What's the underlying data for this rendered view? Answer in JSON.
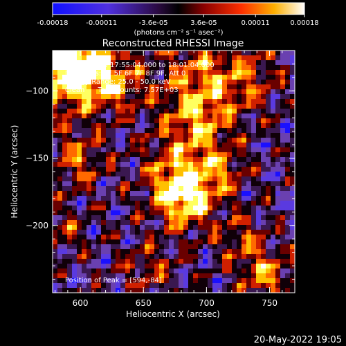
{
  "colorbar": {
    "tick_labels": [
      "-0.00018",
      "-0.00011",
      "-3.6e-05",
      "3.6e-05",
      "0.00011",
      "0.00018"
    ],
    "tick_values": [
      -0.00018,
      -0.00011,
      -3.6e-05,
      3.6e-05,
      0.00011,
      0.00018
    ],
    "range": [
      -0.00018,
      0.00018
    ],
    "unit_label": "(photons cm⁻² s⁻¹ asec⁻²)"
  },
  "chart_data": {
    "type": "heatmap",
    "title": "Reconstructed RHESSI Image",
    "xlabel": "Heliocentric X (arcsec)",
    "ylabel": "Heliocentric Y (arcsec)",
    "xlim": [
      578,
      770
    ],
    "ylim": [
      -250,
      -70
    ],
    "xticks": [
      600,
      650,
      700,
      750
    ],
    "xtick_labels": [
      "600",
      "650",
      "700",
      "750"
    ],
    "yticks": [
      -100,
      -150,
      -200
    ],
    "ytick_labels": [
      "−100",
      "−150",
      "−200"
    ],
    "annotations": [
      "26-Apr-2015 17:55:04.000 to 18:01:04.000",
      "Detectors: 3F 5F 6F 7F 8F 9F, Att 0",
      "Energy Range: 25.0 - 50.0 keV",
      "Clean      Total counts: 7.57E+03"
    ],
    "peak_label": "Position of Peak = [594,-84]",
    "peak": [
      594,
      -84
    ],
    "colormap": [
      "#1a10ff",
      "#5a3ae0",
      "#6a40b0",
      "#3a1850",
      "#100008",
      "#6a0000",
      "#d02000",
      "#ff6a00",
      "#ffc000",
      "#ffff60",
      "#ffffff"
    ]
  },
  "footer": {
    "timestamp": "20-May-2022 19:05"
  }
}
